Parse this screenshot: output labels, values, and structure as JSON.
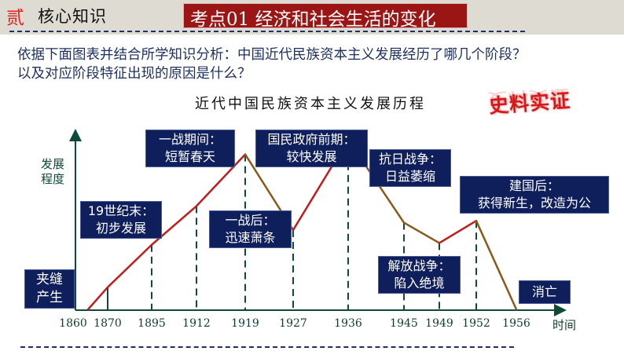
{
  "header": {
    "section_number": "贰",
    "section_title": "核心知识",
    "topic_label": "考点01 经济和社会生活的变化"
  },
  "question": {
    "line1": "依据下面图表并结合所学知识分析：中国近代民族资本主义发展经历了哪几个阶段？",
    "line2": "以及对应阶段特征出现的原因是什么？"
  },
  "stamp": {
    "text": "史料实证"
  },
  "chart_data": {
    "type": "line",
    "title": "近代中国民族资本主义发展历程",
    "xlabel": "时间",
    "ylabel": "发展程度",
    "categories": [
      "1860",
      "1870",
      "1895",
      "1912",
      "1919",
      "1927",
      "1936",
      "1945",
      "1949",
      "1952",
      "1956"
    ],
    "values": [
      0,
      1.2,
      3.5,
      5.6,
      8.4,
      4.3,
      9.2,
      4.7,
      3.6,
      4.8,
      0
    ],
    "segment_colors": [
      "#c41c1c",
      "#c41c1c",
      "#c41c1c",
      "#c41c1c",
      "#8b5a1a",
      "#c41c1c",
      "#8b5a1a",
      "#8b5a1a",
      "#c41c1c",
      "#8b5a1a"
    ],
    "colors": {
      "rise": "#c41c1c",
      "decline": "#8b5a1a",
      "axis": "#0d4a3a"
    },
    "grid": false,
    "annotations": [
      {
        "line1": "夹缝",
        "line2": "产生"
      },
      {
        "line1": "19世纪末：",
        "line2": "初步发展"
      },
      {
        "line1": "一战期间：",
        "line2": "短暂春天"
      },
      {
        "line1": "一战后：",
        "line2": "迅速萧条"
      },
      {
        "line1": "国民政府前期：",
        "line2": "较快发展"
      },
      {
        "line1": "抗日战争：",
        "line2": "日益萎缩"
      },
      {
        "line1": "解放战争：",
        "line2": "陷入绝境"
      },
      {
        "line1": "建国后：",
        "line2": "获得新生，改造为公"
      },
      {
        "line1": "消亡",
        "line2": ""
      }
    ]
  }
}
